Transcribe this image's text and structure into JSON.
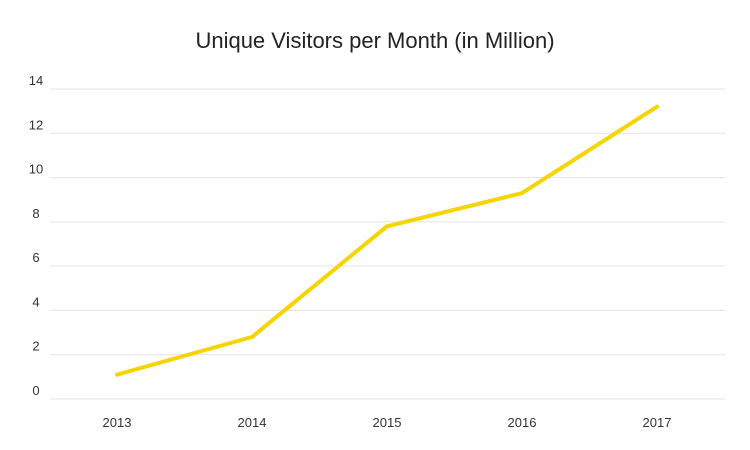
{
  "chart_data": {
    "type": "line",
    "title": "Unique Visitors per Month (in Million)",
    "xlabel": "",
    "ylabel": "",
    "categories": [
      "2013",
      "2014",
      "2015",
      "2016",
      "2017"
    ],
    "series": [
      {
        "values": [
          1.1,
          2.8,
          7.8,
          9.3,
          13.2
        ]
      }
    ],
    "ylim": [
      0,
      14
    ],
    "yticks": [
      "0",
      "2",
      "4",
      "6",
      "8",
      "10",
      "12",
      "14"
    ],
    "grid": true,
    "legend": "none",
    "colors": {
      "line": "#f5d400",
      "grid": "#e3e3e3",
      "text": "#333333"
    }
  }
}
